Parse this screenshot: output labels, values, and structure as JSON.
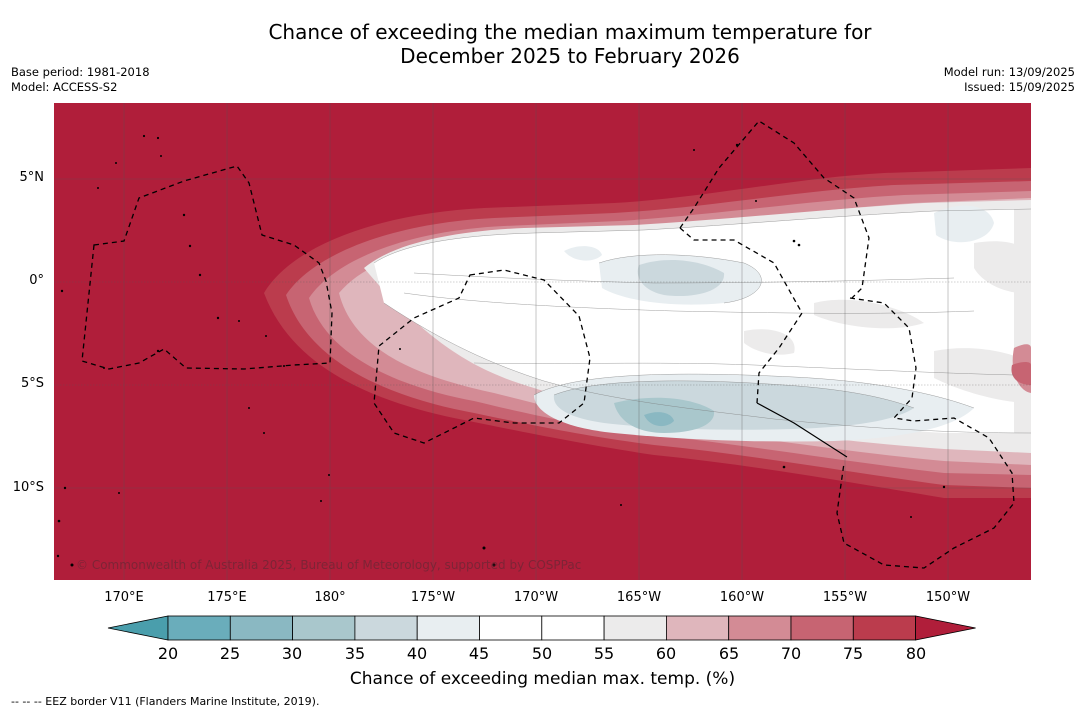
{
  "header": {
    "title_line1": "Chance of exceeding the median maximum temperature for",
    "title_line2": "December 2025 to February 2026",
    "base_period": "Base period: 1981-2018",
    "model": "Model: ACCESS-S2",
    "model_run": "Model run: 13/09/2025",
    "issued": "Issued: 15/09/2025"
  },
  "map": {
    "copyright": "© Commonwealth of Australia 2025, Bureau of Meteorology, supported by COSPPac",
    "lat_labels": [
      "5°N",
      "0°",
      "5°S",
      "10°S"
    ],
    "lon_labels": [
      "170°E",
      "175°E",
      "180°",
      "175°W",
      "170°W",
      "165°W",
      "160°W",
      "155°W",
      "150°W"
    ]
  },
  "colorbar": {
    "label": "Chance of exceeding median max. temp. (%)",
    "ticks": [
      "20",
      "25",
      "30",
      "35",
      "40",
      "45",
      "50",
      "55",
      "60",
      "65",
      "70",
      "75",
      "80"
    ],
    "colors": [
      "#4a9eac",
      "#6aadbb",
      "#8ab8c2",
      "#a9c7cc",
      "#cbd8dd",
      "#e8eef1",
      "#ffffff",
      "#ffffff",
      "#ecebeb",
      "#dfb6bc",
      "#d38b95",
      "#c76472",
      "#bb3c4d",
      "#b01e3a"
    ]
  },
  "footer": {
    "eez_legend": "--  --  -- EEZ border V11 (Flanders Marine Institute, 2019)."
  }
}
